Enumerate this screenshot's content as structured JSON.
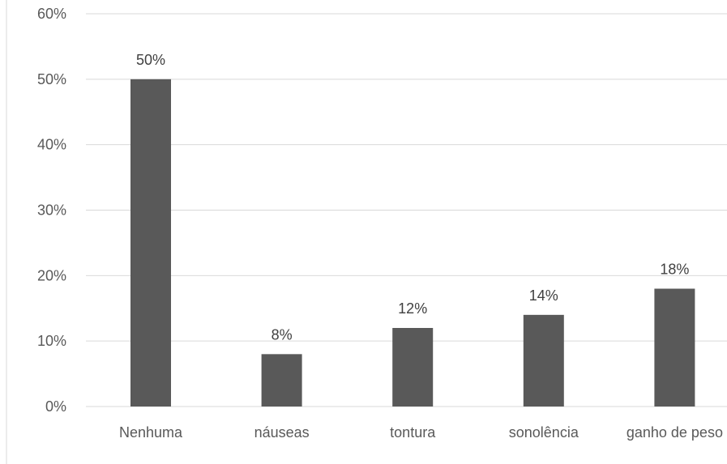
{
  "chart_data": {
    "type": "bar",
    "title": "",
    "xlabel": "",
    "ylabel": "",
    "categories": [
      "Nenhuma",
      "náuseas",
      "tontura",
      "sonolência",
      "ganho de peso"
    ],
    "values": [
      50,
      8,
      12,
      14,
      18
    ],
    "data_labels": [
      "50%",
      "8%",
      "12%",
      "14%",
      "18%"
    ],
    "ylim": [
      0,
      60
    ],
    "y_ticks": [
      "0%",
      "10%",
      "20%",
      "30%",
      "40%",
      "50%",
      "60%"
    ],
    "grid": true,
    "legend": "none",
    "colors": {
      "bar": "#595959",
      "grid": "#d9d9d9",
      "text": "#595959",
      "border": "#d9d9d9"
    }
  }
}
